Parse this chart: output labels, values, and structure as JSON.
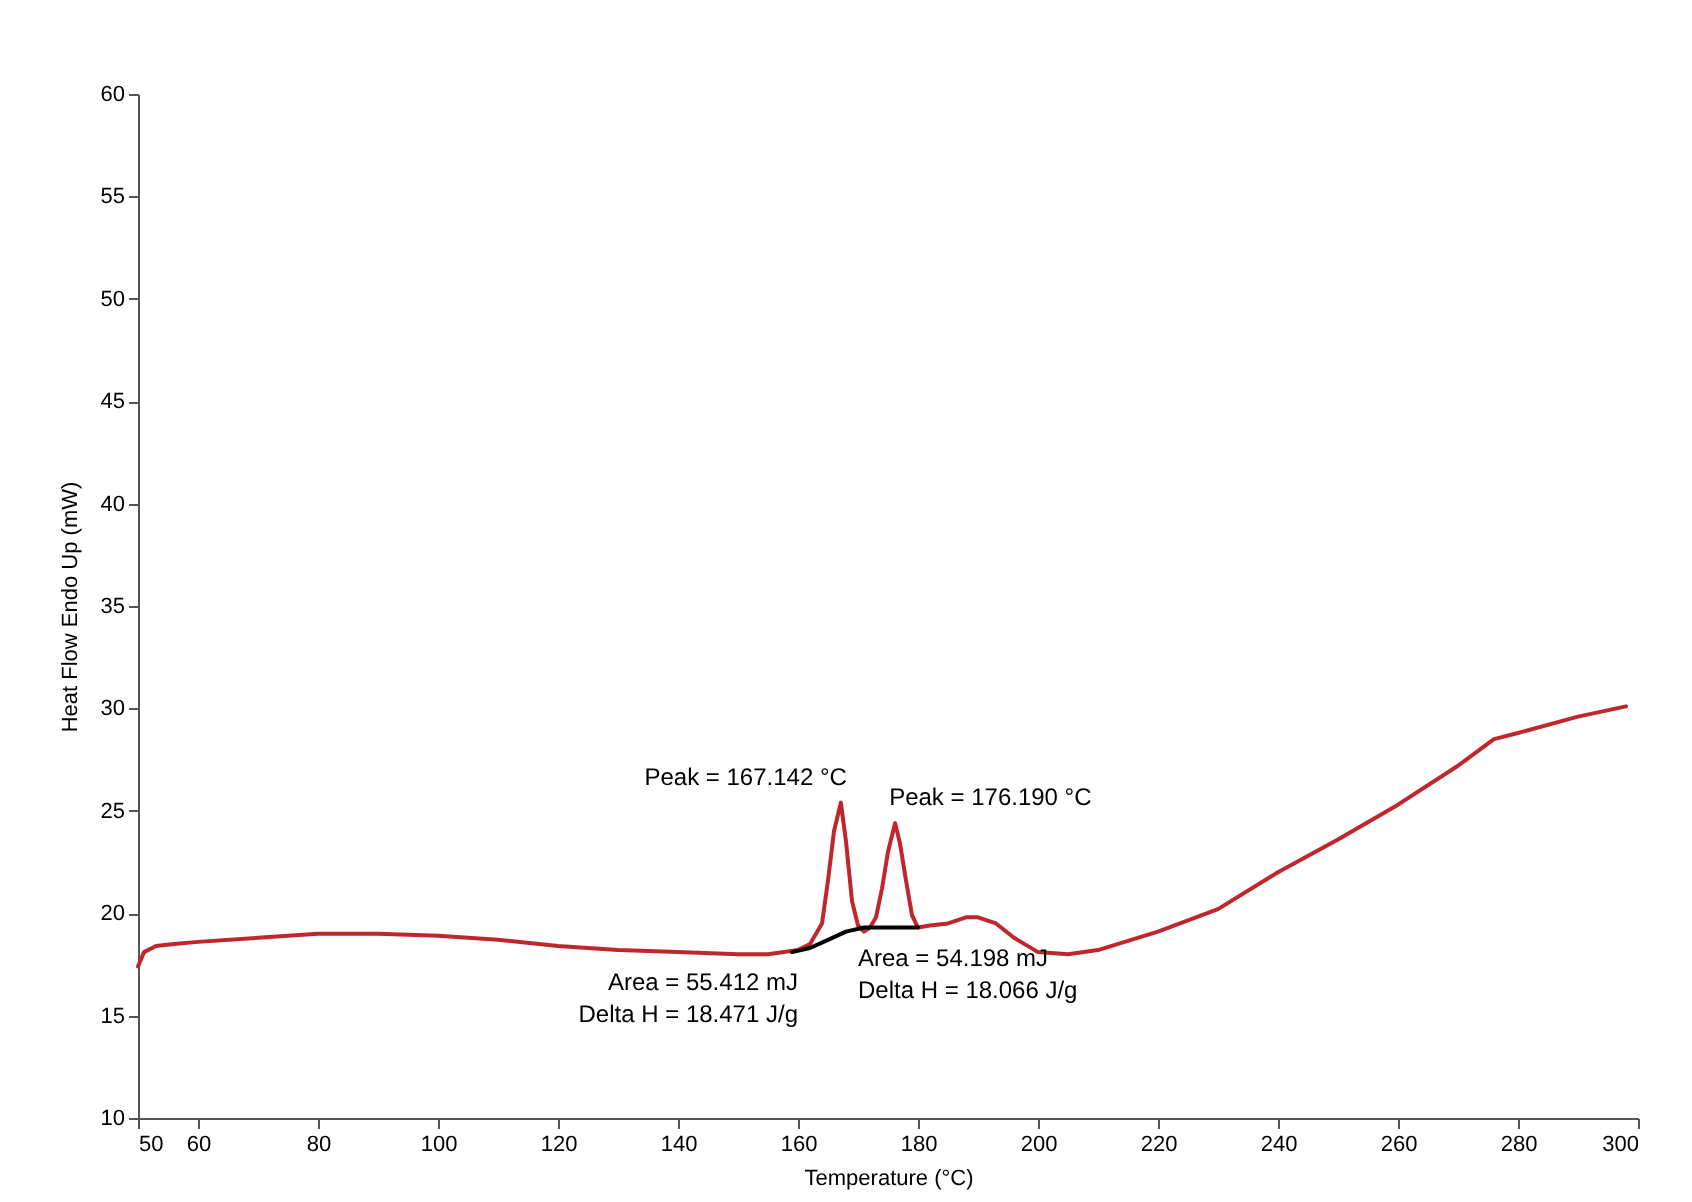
{
  "chart_data": {
    "type": "line",
    "xlabel": "Temperature (°C)",
    "ylabel": "Heat Flow Endo Up (mW)",
    "xlim": [
      50,
      300
    ],
    "xticks": [
      50,
      60,
      80,
      100,
      120,
      140,
      160,
      180,
      200,
      220,
      240,
      260,
      280,
      300
    ],
    "ylim": [
      10,
      60
    ],
    "yticks": [
      10,
      15,
      20,
      25,
      30,
      35,
      40,
      45,
      50,
      55,
      60
    ],
    "grid": false,
    "series": [
      {
        "color": "#c0272d",
        "x": [
          50,
          51,
          53,
          56,
          60,
          70,
          80,
          90,
          100,
          110,
          120,
          130,
          140,
          150,
          155,
          160,
          162,
          164,
          165,
          166,
          167.142,
          168,
          169,
          170,
          171,
          172,
          173,
          174,
          175,
          176.19,
          177,
          178,
          179,
          180,
          182,
          185,
          188,
          190,
          193,
          196,
          200,
          205,
          210,
          220,
          230,
          240,
          250,
          260,
          270,
          276,
          280,
          290,
          298
        ],
        "values": [
          17.4,
          18.1,
          18.4,
          18.5,
          18.6,
          18.8,
          19.0,
          19.0,
          18.9,
          18.7,
          18.4,
          18.2,
          18.1,
          18.0,
          18.0,
          18.2,
          18.5,
          19.5,
          21.6,
          24.0,
          25.4,
          23.5,
          20.6,
          19.4,
          19.1,
          19.3,
          19.8,
          21.2,
          23.0,
          24.4,
          23.4,
          21.6,
          19.9,
          19.3,
          19.4,
          19.5,
          19.8,
          19.8,
          19.5,
          18.8,
          18.1,
          18.0,
          18.2,
          19.1,
          20.2,
          22.0,
          23.6,
          25.3,
          27.2,
          28.5,
          28.8,
          29.6,
          30.1
        ]
      },
      {
        "color": "#000000",
        "x": [
          159,
          162,
          165,
          168,
          171,
          180
        ],
        "values": [
          18.1,
          18.3,
          18.7,
          19.1,
          19.3,
          19.3
        ]
      }
    ],
    "annotations": [
      {
        "text": "Peak = 167.142 °C",
        "x": 167.142,
        "y": 25.4
      },
      {
        "text": "Peak = 176.190 °C",
        "x": 176.19,
        "y": 24.4
      },
      {
        "text": "Area = 55.412 mJ\nDelta H = 18.471 J/g",
        "x": 159,
        "y": 18.1
      },
      {
        "text": "Area = 54.198 mJ\nDelta H = 18.066 J/g",
        "x": 171,
        "y": 19.3
      }
    ]
  }
}
